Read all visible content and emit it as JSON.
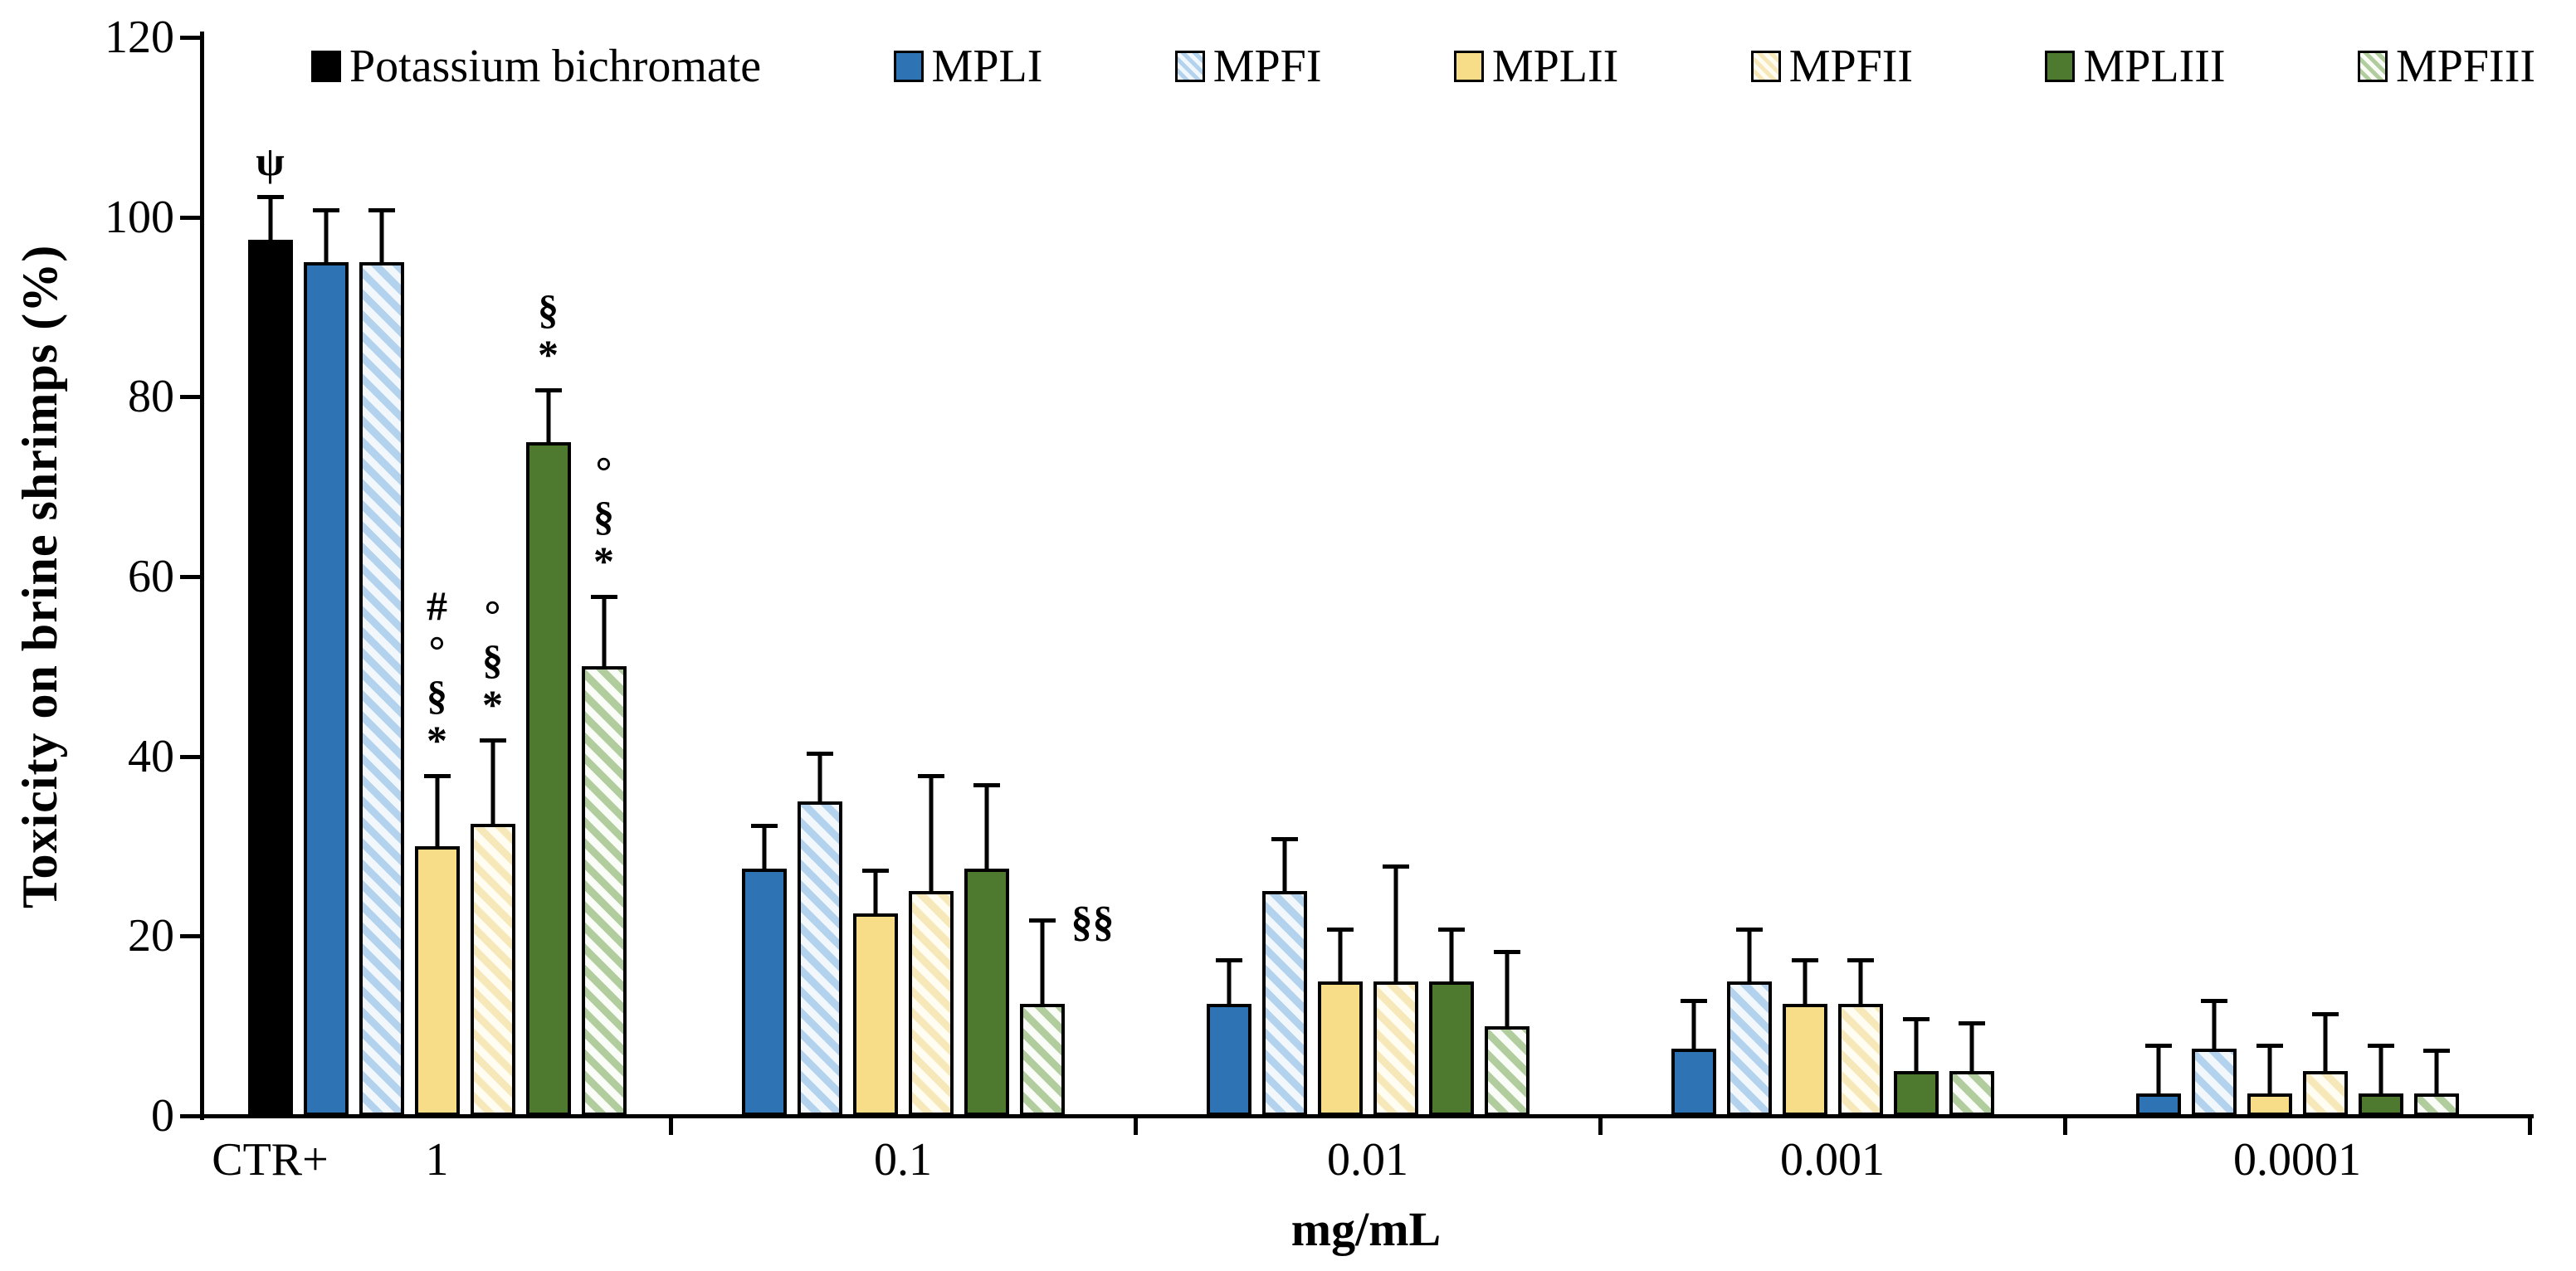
{
  "chart_data": {
    "type": "bar",
    "title": "",
    "ylabel": "Toxicity on brine shrimps (%)",
    "xlabel": "mg/mL",
    "ylim": [
      0,
      120
    ],
    "yticks": [
      0,
      20,
      40,
      60,
      80,
      100,
      120
    ],
    "grid": false,
    "legend_position": "top",
    "error_bars": "upper",
    "legend": [
      {
        "name": "Potassium bichromate",
        "pattern": "solid",
        "fill": "#000000"
      },
      {
        "name": "MPLI",
        "pattern": "solid",
        "fill": "#2E74B5"
      },
      {
        "name": "MPFI",
        "pattern": "hatch",
        "fill": "#F2F7FC",
        "stripe": "#B3D2ED"
      },
      {
        "name": "MPLII",
        "pattern": "solid",
        "fill": "#F7DD88"
      },
      {
        "name": "MPFII",
        "pattern": "hatch",
        "fill": "#FFFDF2",
        "stripe": "#F6E8B9"
      },
      {
        "name": "MPLIII",
        "pattern": "solid",
        "fill": "#4E7A30"
      },
      {
        "name": "MPFIII",
        "pattern": "hatch",
        "fill": "#FAFCF7",
        "stripe": "#B1CD9E"
      }
    ],
    "groups": [
      {
        "label": "1",
        "sub_label": "CTR+",
        "bars": [
          {
            "series": "Potassium bichromate",
            "value": 97.5,
            "err": 5,
            "ann": [
              "ψ"
            ]
          },
          {
            "series": "MPLI",
            "value": 95,
            "err": 6,
            "ann": []
          },
          {
            "series": "MPFI",
            "value": 95,
            "err": 6,
            "ann": []
          },
          {
            "series": "MPLII",
            "value": 30,
            "err": 8,
            "ann": [
              "#",
              "°",
              "§",
              "*"
            ]
          },
          {
            "series": "MPFII",
            "value": 32.5,
            "err": 9.5,
            "ann": [
              "°",
              "§",
              "*"
            ]
          },
          {
            "series": "MPLIII",
            "value": 75,
            "err": 6,
            "ann": [
              "§",
              "*"
            ]
          },
          {
            "series": "MPFIII",
            "value": 50,
            "err": 8,
            "ann": [
              "°",
              "§",
              "*"
            ]
          }
        ]
      },
      {
        "label": "0.1",
        "bars": [
          {
            "series": "MPLI",
            "value": 27.5,
            "err": 5,
            "ann": []
          },
          {
            "series": "MPFI",
            "value": 35,
            "err": 5.5,
            "ann": []
          },
          {
            "series": "MPLII",
            "value": 22.5,
            "err": 5,
            "ann": []
          },
          {
            "series": "MPFII",
            "value": 25,
            "err": 13,
            "ann": []
          },
          {
            "series": "MPLIII",
            "value": 27.5,
            "err": 9.5,
            "ann": []
          },
          {
            "series": "MPFIII",
            "value": 12.5,
            "err": 9.5,
            "ann": [],
            "side_ann": "§§"
          }
        ]
      },
      {
        "label": "0.01",
        "bars": [
          {
            "series": "MPLI",
            "value": 12.5,
            "err": 5,
            "ann": []
          },
          {
            "series": "MPFI",
            "value": 25,
            "err": 6,
            "ann": []
          },
          {
            "series": "MPLII",
            "value": 15,
            "err": 6,
            "ann": []
          },
          {
            "series": "MPFII",
            "value": 15,
            "err": 13,
            "ann": []
          },
          {
            "series": "MPLIII",
            "value": 15,
            "err": 6,
            "ann": []
          },
          {
            "series": "MPFIII",
            "value": 10,
            "err": 8.5,
            "ann": []
          }
        ]
      },
      {
        "label": "0.001",
        "bars": [
          {
            "series": "MPLI",
            "value": 7.5,
            "err": 5.5,
            "ann": []
          },
          {
            "series": "MPFI",
            "value": 15,
            "err": 6,
            "ann": []
          },
          {
            "series": "MPLII",
            "value": 12.5,
            "err": 5,
            "ann": []
          },
          {
            "series": "MPFII",
            "value": 12.5,
            "err": 5,
            "ann": []
          },
          {
            "series": "MPLIII",
            "value": 5,
            "err": 6,
            "ann": []
          },
          {
            "series": "MPFIII",
            "value": 5,
            "err": 5.5,
            "ann": []
          }
        ]
      },
      {
        "label": "0.0001",
        "bars": [
          {
            "series": "MPLI",
            "value": 2.5,
            "err": 5.5,
            "ann": []
          },
          {
            "series": "MPFI",
            "value": 7.5,
            "err": 5.5,
            "ann": []
          },
          {
            "series": "MPLII",
            "value": 2.5,
            "err": 5.5,
            "ann": []
          },
          {
            "series": "MPFII",
            "value": 5,
            "err": 6.5,
            "ann": []
          },
          {
            "series": "MPLIII",
            "value": 2.5,
            "err": 5.5,
            "ann": []
          },
          {
            "series": "MPFIII",
            "value": 2.5,
            "err": 5,
            "ann": []
          }
        ]
      }
    ]
  }
}
